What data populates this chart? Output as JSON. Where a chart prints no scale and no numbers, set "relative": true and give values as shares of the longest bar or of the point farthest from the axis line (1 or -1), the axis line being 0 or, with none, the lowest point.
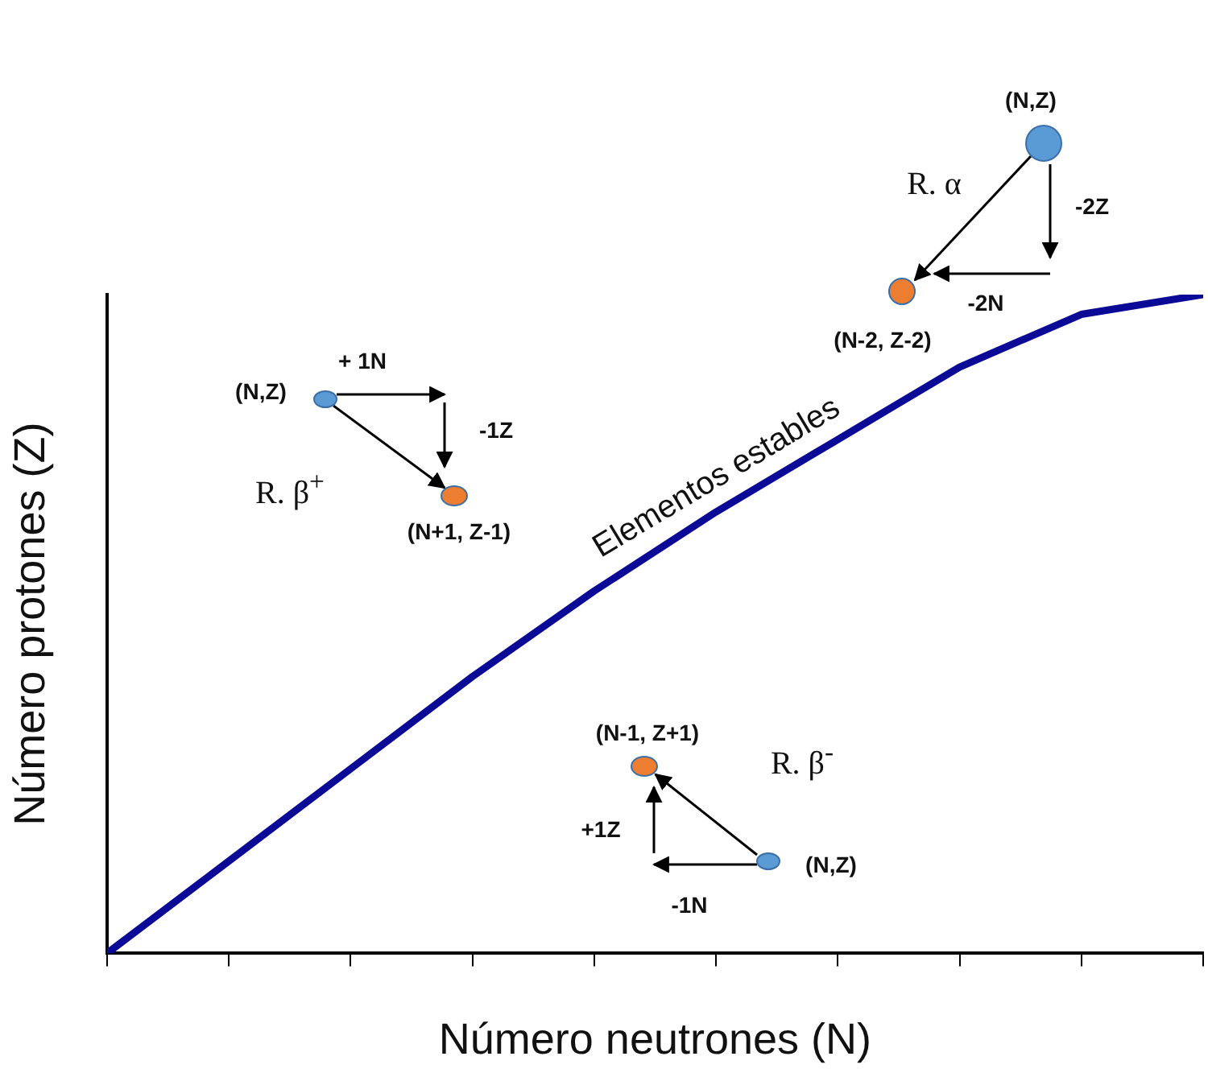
{
  "chart_data": {
    "type": "line",
    "relative": true,
    "xlabel": "Número neutrones (N)",
    "ylabel": "Número protones (Z)",
    "grid": false,
    "legend": false,
    "marker": "none",
    "line_style": "solid",
    "categories": [
      null,
      null,
      null,
      null,
      null,
      null,
      null,
      null,
      null,
      null
    ],
    "series": [
      {
        "color": "#0a0a96",
        "values": [
          0,
          0.14,
          0.28,
          0.42,
          0.55,
          0.67,
          0.78,
          0.89,
          0.97,
          1
        ]
      }
    ],
    "annotations": [
      "Elementos estables",
      "R. α",
      "(N,Z)",
      "-2Z",
      "-2N",
      "(N-2, Z-2)",
      "(N,Z)",
      "+ 1N",
      "-1Z",
      "R. β$^{+}$",
      "(N+1, Z-1)",
      "(N-1, Z+1)",
      "R. β$^{-}$",
      "+1Z",
      "(N,Z)",
      "-1N"
    ]
  }
}
